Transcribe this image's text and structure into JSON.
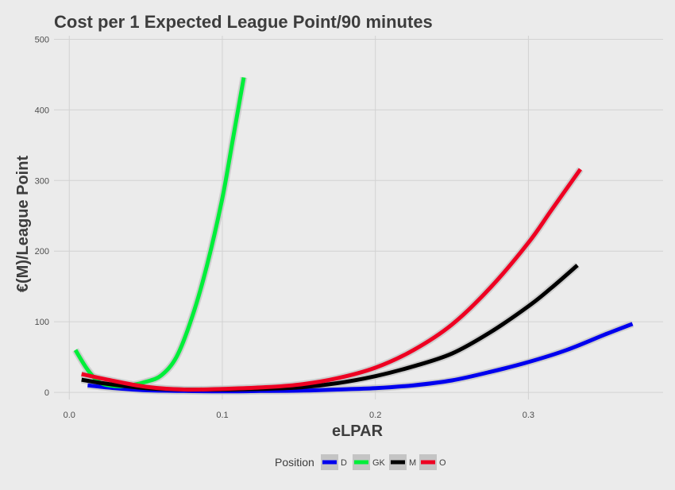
{
  "chart_data": {
    "type": "line",
    "title": "Cost per 1 Expected League Point/90 minutes",
    "xlabel": "eLPAR",
    "ylabel": "€(M)/League Point",
    "xlim": [
      -0.01,
      0.388
    ],
    "ylim": [
      -10,
      505
    ],
    "x_ticks": [
      0.0,
      0.1,
      0.2,
      0.3
    ],
    "x_tick_labels": [
      "0.0",
      "0.1",
      "0.2",
      "0.3"
    ],
    "y_ticks": [
      0,
      100,
      200,
      300,
      400,
      500
    ],
    "y_tick_labels": [
      "0",
      "100",
      "200",
      "300",
      "400",
      "500"
    ],
    "grid": true,
    "legend": {
      "title": "Position",
      "placement": "bottom"
    },
    "series": [
      {
        "name": "D",
        "color": "#0000ee",
        "x": [
          0.012,
          0.03,
          0.05,
          0.075,
          0.1,
          0.125,
          0.15,
          0.175,
          0.2,
          0.225,
          0.25,
          0.275,
          0.3,
          0.325,
          0.35,
          0.368
        ],
        "y": [
          10,
          6,
          3,
          2,
          1.5,
          2,
          2.5,
          4,
          6,
          10,
          17,
          29,
          43,
          60,
          82,
          97
        ]
      },
      {
        "name": "GK",
        "color": "#00ee3a",
        "x": [
          0.004,
          0.012,
          0.02,
          0.03,
          0.04,
          0.05,
          0.06,
          0.07,
          0.08,
          0.09,
          0.1,
          0.107,
          0.114
        ],
        "y": [
          60,
          32,
          14,
          9,
          10,
          15,
          24,
          50,
          105,
          180,
          275,
          360,
          446
        ]
      },
      {
        "name": "M",
        "color": "#000000",
        "x": [
          0.008,
          0.025,
          0.05,
          0.075,
          0.1,
          0.125,
          0.15,
          0.175,
          0.2,
          0.225,
          0.25,
          0.275,
          0.3,
          0.315,
          0.332
        ],
        "y": [
          18,
          12,
          6,
          4,
          4,
          5,
          7,
          13,
          23,
          37,
          55,
          85,
          122,
          148,
          180
        ]
      },
      {
        "name": "O",
        "color": "#ee0022",
        "x": [
          0.008,
          0.025,
          0.05,
          0.075,
          0.1,
          0.125,
          0.15,
          0.175,
          0.2,
          0.225,
          0.25,
          0.275,
          0.3,
          0.315,
          0.334
        ],
        "y": [
          26,
          18,
          8,
          4,
          5,
          7,
          11,
          20,
          35,
          60,
          96,
          148,
          212,
          258,
          316
        ]
      }
    ]
  }
}
